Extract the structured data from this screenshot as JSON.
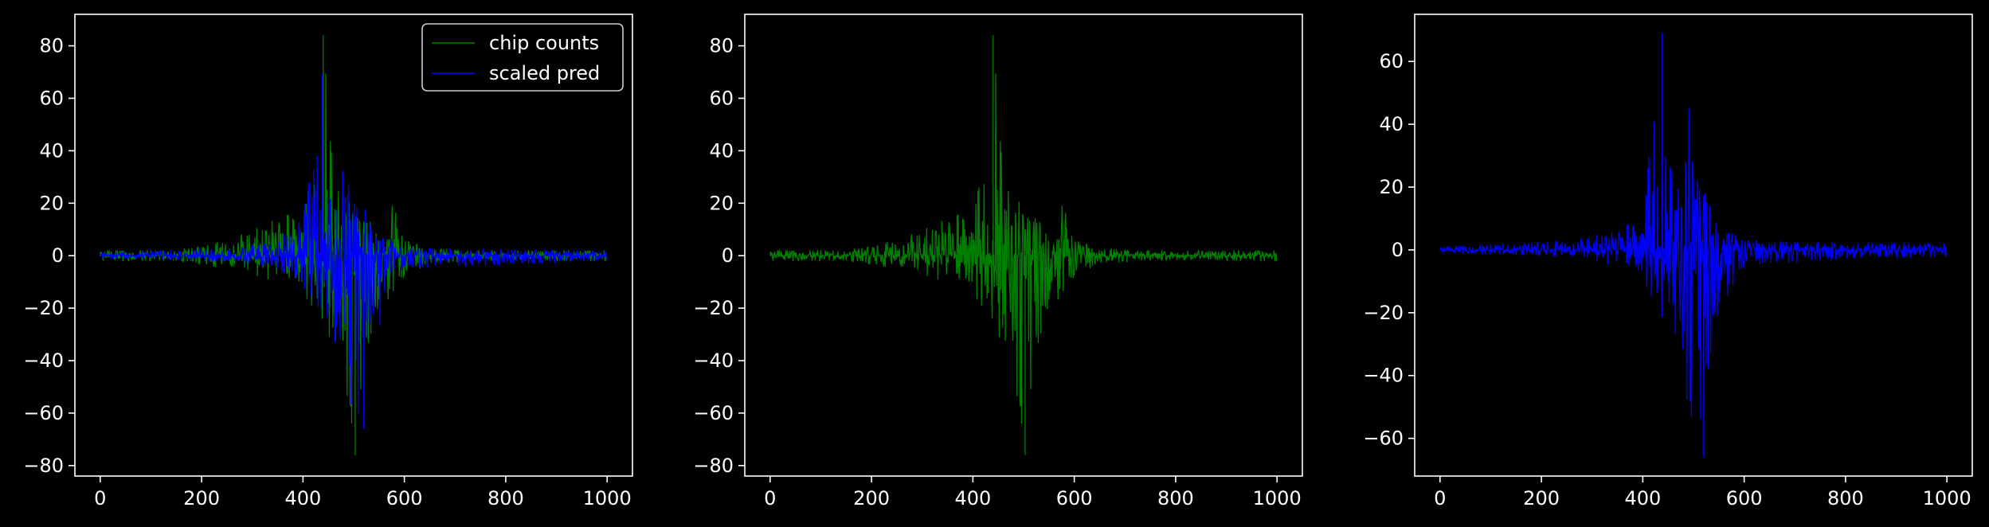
{
  "background": "#000000",
  "foreground": "#ffffff",
  "colors": {
    "chip_counts": "#008000",
    "scaled_pred": "#0000ff"
  },
  "chart_data": [
    {
      "type": "line",
      "title": "",
      "xlabel": "",
      "ylabel": "",
      "xlim": [
        -50,
        1050
      ],
      "ylim": [
        -84,
        92
      ],
      "xticks": [
        0,
        200,
        400,
        600,
        800,
        1000
      ],
      "yticks": [
        -80,
        -60,
        -40,
        -20,
        0,
        20,
        40,
        60,
        80
      ],
      "grid": false,
      "legend": {
        "placement": "top-right"
      },
      "series": [
        {
          "name": "chip counts",
          "color": "#008000",
          "x_range": [
            0,
            1000
          ],
          "upper_envelope": {
            "x": [
              0,
              150,
              250,
              350,
              400,
              430,
              440,
              455,
              470,
              500,
              540,
              570,
              575,
              600,
              650,
              750,
              1000
            ],
            "y": [
              2,
              2,
              6,
              14,
              25,
              33,
              84,
              42,
              28,
              18,
              12,
              8,
              23,
              6,
              3,
              2,
              2
            ]
          },
          "lower_envelope": {
            "x": [
              0,
              150,
              250,
              350,
              400,
              440,
              455,
              470,
              495,
              503,
              530,
              560,
              600,
              650,
              750,
              1000
            ],
            "y": [
              -2,
              -2,
              -5,
              -10,
              -18,
              -25,
              -55,
              -35,
              -70,
              -76,
              -40,
              -22,
              -8,
              -3,
              -2,
              -2
            ]
          }
        },
        {
          "name": "scaled pred",
          "color": "#0000ff",
          "x_range": [
            0,
            1000
          ],
          "upper_envelope": {
            "x": [
              0,
              250,
              350,
              400,
              438,
              445,
              470,
              490,
              500,
              530,
              560,
              600,
              1000
            ],
            "y": [
              1,
              3,
              6,
              15,
              69,
              30,
              22,
              48,
              30,
              15,
              8,
              3,
              2
            ]
          },
          "lower_envelope": {
            "x": [
              0,
              250,
              350,
              400,
              450,
              500,
              520,
              530,
              560,
              600,
              1000
            ],
            "y": [
              -1,
              -2,
              -5,
              -12,
              -25,
              -62,
              -66,
              -45,
              -20,
              -5,
              -2
            ]
          }
        }
      ]
    },
    {
      "type": "line",
      "title": "",
      "xlabel": "",
      "ylabel": "",
      "xlim": [
        -50,
        1050
      ],
      "ylim": [
        -84,
        92
      ],
      "xticks": [
        0,
        200,
        400,
        600,
        800,
        1000
      ],
      "yticks": [
        -80,
        -60,
        -40,
        -20,
        0,
        20,
        40,
        60,
        80
      ],
      "grid": false,
      "series": [
        {
          "color": "#008000",
          "x_range": [
            0,
            1000
          ],
          "upper_envelope": {
            "x": [
              0,
              150,
              250,
              350,
              400,
              430,
              440,
              455,
              470,
              500,
              540,
              570,
              575,
              600,
              650,
              750,
              1000
            ],
            "y": [
              2,
              2,
              6,
              14,
              25,
              33,
              84,
              42,
              28,
              18,
              12,
              8,
              23,
              6,
              3,
              2,
              2
            ]
          },
          "lower_envelope": {
            "x": [
              0,
              150,
              250,
              350,
              400,
              440,
              455,
              470,
              495,
              503,
              530,
              560,
              600,
              650,
              750,
              1000
            ],
            "y": [
              -2,
              -2,
              -5,
              -10,
              -18,
              -25,
              -55,
              -35,
              -70,
              -76,
              -40,
              -22,
              -8,
              -3,
              -2,
              -2
            ]
          }
        }
      ]
    },
    {
      "type": "line",
      "title": "",
      "xlabel": "",
      "ylabel": "",
      "xlim": [
        -50,
        1050
      ],
      "ylim": [
        -72,
        75
      ],
      "xticks": [
        0,
        200,
        400,
        600,
        800,
        1000
      ],
      "yticks": [
        -60,
        -40,
        -20,
        0,
        20,
        40,
        60
      ],
      "grid": false,
      "series": [
        {
          "color": "#0000ff",
          "x_range": [
            0,
            1000
          ],
          "upper_envelope": {
            "x": [
              0,
              250,
              350,
              400,
              438,
              445,
              470,
              490,
              500,
              530,
              560,
              600,
              1000
            ],
            "y": [
              1,
              3,
              6,
              15,
              69,
              30,
              22,
              48,
              30,
              15,
              8,
              3,
              2
            ]
          },
          "lower_envelope": {
            "x": [
              0,
              250,
              350,
              400,
              450,
              500,
              520,
              530,
              560,
              600,
              1000
            ],
            "y": [
              -1,
              -2,
              -5,
              -12,
              -25,
              -62,
              -66,
              -45,
              -20,
              -5,
              -2
            ]
          }
        }
      ]
    }
  ]
}
